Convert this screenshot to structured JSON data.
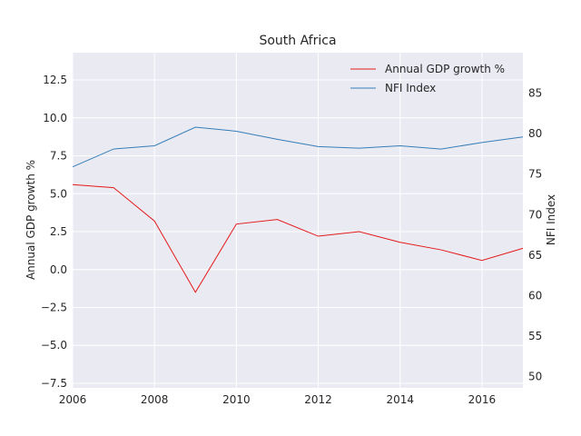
{
  "chart_data": {
    "type": "line",
    "title": "South Africa",
    "xlabel": "",
    "ylabel": "Annual GDP growth %",
    "y2label": "NFI Index",
    "x": [
      2006,
      2007,
      2008,
      2009,
      2010,
      2011,
      2012,
      2013,
      2014,
      2015,
      2016,
      2017
    ],
    "xlim": [
      2006,
      2017
    ],
    "ylim": [
      -7.8,
      14.3
    ],
    "y2lim": [
      48.6,
      90.0
    ],
    "xticks": [
      "2006",
      "2008",
      "2010",
      "2012",
      "2014",
      "2016"
    ],
    "yticks": [
      "−7.5",
      "−5.0",
      "−2.5",
      "0.0",
      "2.5",
      "5.0",
      "7.5",
      "10.0",
      "12.5"
    ],
    "y2ticks": [
      "50",
      "55",
      "60",
      "65",
      "70",
      "75",
      "80",
      "85"
    ],
    "grid": true,
    "legend_position": "top-right",
    "series": [
      {
        "name": "Annual GDP growth %",
        "axis": "left",
        "color": "#e41a1c",
        "values": [
          5.6,
          5.4,
          3.2,
          -1.5,
          3.0,
          3.3,
          2.2,
          2.5,
          1.8,
          1.3,
          0.6,
          1.4
        ]
      },
      {
        "name": "NFI Index",
        "axis": "right",
        "color": "#377eb8",
        "values": [
          75.9,
          78.1,
          78.5,
          80.8,
          80.3,
          79.3,
          78.4,
          78.2,
          78.5,
          78.1,
          78.9,
          79.6
        ]
      }
    ]
  }
}
